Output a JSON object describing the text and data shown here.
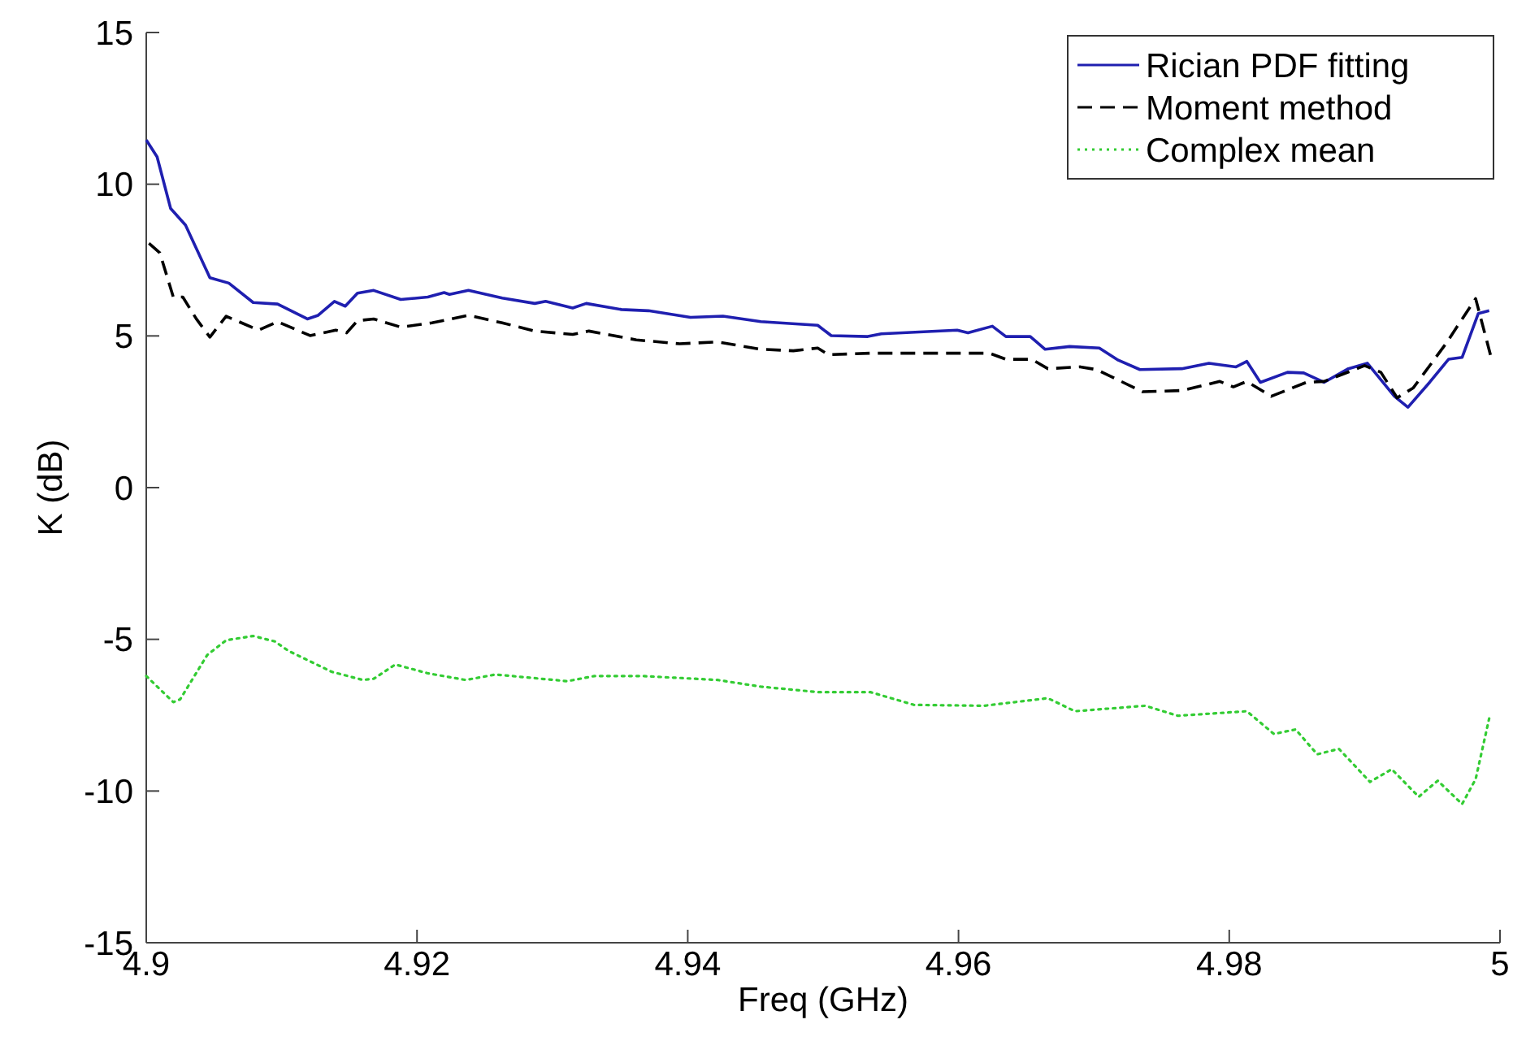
{
  "chart_data": {
    "type": "line",
    "xlabel": "Freq (GHz)",
    "ylabel": "K (dB)",
    "xlim": [
      4.9,
      5
    ],
    "ylim": [
      -15,
      15
    ],
    "xticks": [
      4.9,
      4.92,
      4.94,
      4.96,
      4.98,
      5
    ],
    "yticks": [
      -15,
      -10,
      -5,
      0,
      5,
      10,
      15
    ],
    "legend": "top right",
    "series": [
      {
        "name": "Rician PDF fitting",
        "color": "#1f1fb0",
        "line_style": "solid",
        "x": [
          4.9,
          4.9008,
          4.9018,
          4.9029,
          4.9047,
          4.9061,
          4.9079,
          4.9097,
          4.9119,
          4.9127,
          4.9139,
          4.9147,
          4.9156,
          4.9168,
          4.9188,
          4.9208,
          4.922,
          4.9224,
          4.9238,
          4.9263,
          4.9287,
          4.9295,
          4.9315,
          4.9325,
          4.9351,
          4.9371,
          4.9402,
          4.9426,
          4.9454,
          4.9496,
          4.9506,
          4.9533,
          4.9543,
          4.9599,
          4.9607,
          4.9625,
          4.9635,
          4.9653,
          4.9664,
          4.9682,
          4.9704,
          4.9718,
          4.9734,
          4.9765,
          4.9785,
          4.9805,
          4.9813,
          4.9823,
          4.9843,
          4.9855,
          4.987,
          4.9888,
          4.9902,
          4.9922,
          4.9932,
          4.9948,
          4.9962,
          4.9972,
          4.9984,
          4.9992
        ],
        "values": [
          11.46,
          10.9,
          9.2,
          8.65,
          6.92,
          6.74,
          6.1,
          6.05,
          5.56,
          5.68,
          6.14,
          5.98,
          6.41,
          6.5,
          6.2,
          6.28,
          6.43,
          6.37,
          6.5,
          6.25,
          6.07,
          6.14,
          5.92,
          6.07,
          5.87,
          5.83,
          5.61,
          5.65,
          5.47,
          5.35,
          5.01,
          4.98,
          5.07,
          5.19,
          5.1,
          5.32,
          4.98,
          4.98,
          4.56,
          4.65,
          4.6,
          4.2,
          3.89,
          3.92,
          4.1,
          3.98,
          4.16,
          3.47,
          3.8,
          3.78,
          3.47,
          3.92,
          4.1,
          3.01,
          2.65,
          3.47,
          4.23,
          4.29,
          5.74,
          5.83
        ]
      },
      {
        "name": "Moment method",
        "color": "#000000",
        "line_style": "dashed",
        "x": [
          4.9002,
          4.901,
          4.902,
          4.9027,
          4.9037,
          4.9047,
          4.9059,
          4.9083,
          4.9097,
          4.9121,
          4.914,
          4.9148,
          4.9156,
          4.9168,
          4.9188,
          4.9211,
          4.9238,
          4.9263,
          4.9287,
          4.9315,
          4.9327,
          4.9362,
          4.9394,
          4.9422,
          4.9454,
          4.9478,
          4.9496,
          4.9504,
          4.9535,
          4.9599,
          4.9623,
          4.9635,
          4.9654,
          4.9666,
          4.969,
          4.9702,
          4.9736,
          4.9765,
          4.9793,
          4.9803,
          4.9813,
          4.9831,
          4.9857,
          4.987,
          4.99,
          4.9912,
          4.9924,
          4.9936,
          4.996,
          4.9982,
          4.9994
        ],
        "values": [
          8.05,
          7.74,
          6.28,
          6.28,
          5.56,
          4.96,
          5.65,
          5.19,
          5.47,
          5.01,
          5.19,
          5.1,
          5.5,
          5.56,
          5.29,
          5.43,
          5.68,
          5.43,
          5.16,
          5.05,
          5.16,
          4.87,
          4.74,
          4.8,
          4.56,
          4.51,
          4.6,
          4.38,
          4.43,
          4.43,
          4.43,
          4.23,
          4.23,
          3.92,
          3.98,
          3.89,
          3.16,
          3.2,
          3.5,
          3.32,
          3.5,
          3.01,
          3.47,
          3.5,
          4.02,
          3.8,
          2.96,
          3.29,
          4.74,
          6.23,
          4.2
        ]
      },
      {
        "name": "Complex mean",
        "color": "#33cc33",
        "line_style": "dotted",
        "x": [
          4.9,
          4.902,
          4.9025,
          4.9045,
          4.9059,
          4.9079,
          4.9095,
          4.9105,
          4.9137,
          4.916,
          4.9168,
          4.9184,
          4.9208,
          4.9236,
          4.9258,
          4.9311,
          4.9331,
          4.9367,
          4.9422,
          4.9454,
          4.9496,
          4.9535,
          4.9567,
          4.9619,
          4.9666,
          4.9686,
          4.9738,
          4.9762,
          4.9813,
          4.9833,
          4.9849,
          4.9865,
          4.9881,
          4.9904,
          4.992,
          4.994,
          4.9954,
          4.9972,
          4.9982,
          4.9992
        ],
        "values": [
          -6.21,
          -7.07,
          -6.98,
          -5.52,
          -5.03,
          -4.89,
          -5.07,
          -5.38,
          -6.07,
          -6.34,
          -6.3,
          -5.83,
          -6.12,
          -6.34,
          -6.16,
          -6.38,
          -6.21,
          -6.21,
          -6.34,
          -6.56,
          -6.74,
          -6.74,
          -7.16,
          -7.19,
          -6.94,
          -7.37,
          -7.19,
          -7.52,
          -7.37,
          -8.12,
          -7.97,
          -8.79,
          -8.61,
          -9.7,
          -9.28,
          -10.19,
          -9.66,
          -10.43,
          -9.61,
          -7.61
        ]
      }
    ]
  }
}
